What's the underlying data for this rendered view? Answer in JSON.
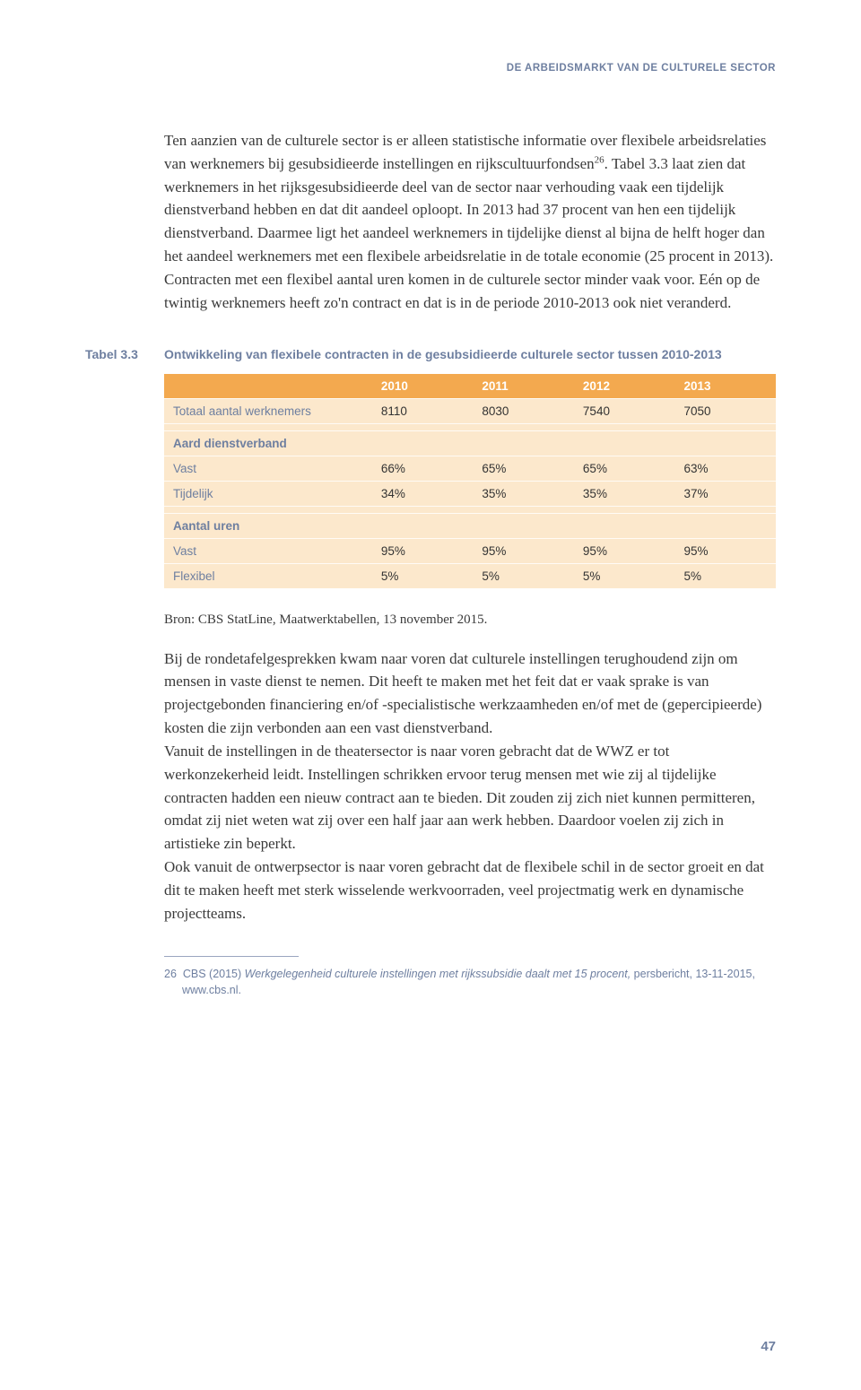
{
  "running_head": "DE ARBEIDSMARKT VAN DE CULTURELE SECTOR",
  "para1_a": "Ten aanzien van de culturele sector is er alleen statistische informatie over flexibele arbeidsrelaties van werknemers bij gesubsidieerde instellingen en rijkscultuurfondsen",
  "para1_sup": "26",
  "para1_b": ". Tabel 3.3 laat zien dat werknemers in het rijksgesubsidieerde deel van de sector naar verhouding vaak een tijdelijk dienstverband hebben en dat dit aandeel oploopt. In 2013 had 37 procent van hen een tijdelijk dienstverband. Daarmee ligt het aandeel werknemers in tijdelijke dienst al bijna de helft hoger dan het aandeel werknemers met een flexibele arbeidsrelatie in de totale economie (25 procent in 2013). Contracten met een flexibel aantal uren komen in de culturele sector minder vaak voor. Eén op de twintig werknemers heeft zo'n contract en dat is in de periode 2010-2013 ook niet veranderd.",
  "table": {
    "label": "Tabel 3.3",
    "caption": "Ontwikkeling van flexibele contracten in de gesubsidieerde culturele sector tussen 2010-2013",
    "columns": [
      "",
      "2010",
      "2011",
      "2012",
      "2013"
    ],
    "rows": [
      {
        "kind": "total",
        "cells": [
          "Totaal aantal werknemers",
          "8110",
          "8030",
          "7540",
          "7050"
        ]
      },
      {
        "kind": "spacer"
      },
      {
        "kind": "section",
        "cells": [
          "Aard dienstverband",
          "",
          "",
          "",
          ""
        ]
      },
      {
        "kind": "data",
        "cells": [
          "Vast",
          "66%",
          "65%",
          "65%",
          "63%"
        ]
      },
      {
        "kind": "data",
        "cells": [
          "Tijdelijk",
          "34%",
          "35%",
          "35%",
          "37%"
        ]
      },
      {
        "kind": "spacer"
      },
      {
        "kind": "section",
        "cells": [
          "Aantal uren",
          "",
          "",
          "",
          ""
        ]
      },
      {
        "kind": "data",
        "cells": [
          "Vast",
          "95%",
          "95%",
          "95%",
          "95%"
        ]
      },
      {
        "kind": "data",
        "cells": [
          "Flexibel",
          "5%",
          "5%",
          "5%",
          "5%"
        ]
      }
    ],
    "header_bg": "#f3a94f",
    "header_fg": "#ffffff",
    "cell_bg": "#fce8cc",
    "label_fg": "#6e7fa0",
    "font_size": 13.5
  },
  "source": "Bron: CBS StatLine, Maatwerktabellen, 13 november 2015.",
  "para2": "Bij de rondetafelgesprekken kwam naar voren dat culturele instellingen terughoudend zijn om mensen in vaste dienst te nemen. Dit heeft te maken met het feit dat er vaak sprake is van projectgebonden financiering en/of -specialistische werkzaamheden en/of met de (gepercipieerde) kosten die zijn verbonden aan een vast dienstverband.",
  "para3": "Vanuit de instellingen in de theatersector is naar voren gebracht dat de WWZ er tot werkonzekerheid leidt. Instellingen schrikken ervoor terug mensen met wie zij al tijdelijke contracten hadden een nieuw contract aan te bieden. Dit zouden zij zich niet kunnen permitteren, omdat zij niet weten wat zij over een half jaar aan werk hebben. Daardoor voelen zij zich in artistieke zin beperkt.",
  "para4": "Ook vanuit de ontwerpsector is naar voren gebracht dat de flexibele schil in de sector groeit en dat dit te maken heeft met sterk wisselende werkvoorraden, veel projectmatig werk en dynamische projectteams.",
  "footnote_num": "26",
  "footnote_a": "CBS (2015) ",
  "footnote_em": "Werkgelegenheid culturele instellingen met rijkssubsidie daalt met 15 procent,",
  "footnote_b": " persbericht, 13-11-2015, www.cbs.nl.",
  "page_number": "47",
  "colors": {
    "accent": "#6e7fa0",
    "text": "#3a3a3a",
    "background": "#ffffff"
  }
}
